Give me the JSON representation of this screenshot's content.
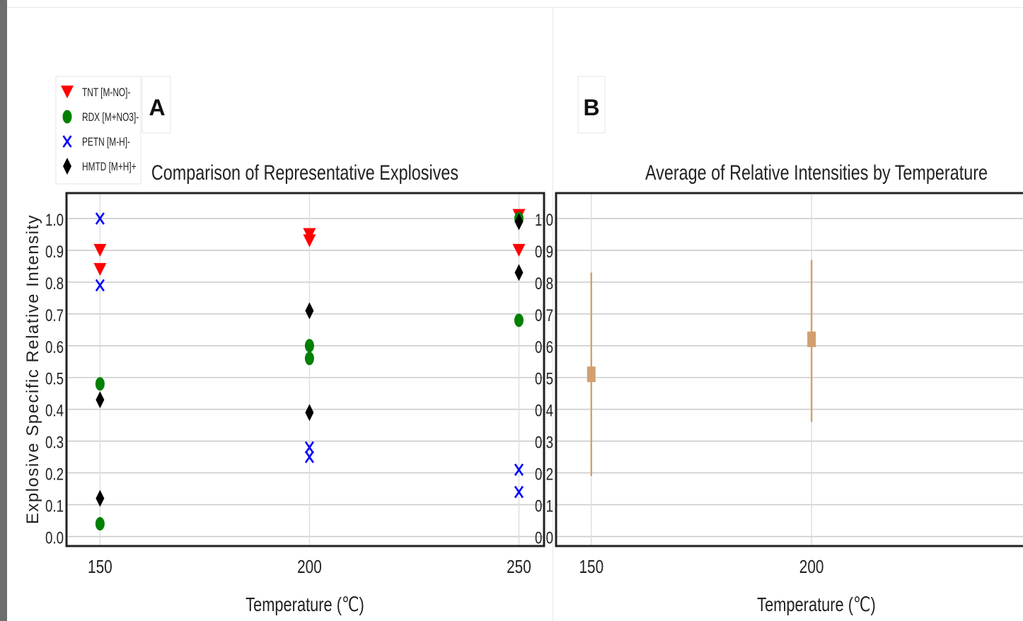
{
  "colors": {
    "tnt": "#ff0000",
    "rdx": "#008000",
    "petn": "#0000ff",
    "hmtd": "#000000",
    "avg": "#d2a06e",
    "grid": "#cccccc",
    "frame": "#222222",
    "sidebar": "#6e6e6e"
  },
  "shared_ylabel": "Explosive Specific Relative Intensity",
  "chart_data": [
    {
      "id": "A",
      "panel_label": "A",
      "type": "scatter",
      "title": "Comparison of Representative Explosives",
      "xlabel": "Temperature (℃)",
      "ylabel": "Explosive Specific Relative Intensity",
      "xlim": [
        142,
        256
      ],
      "ylim": [
        -0.03,
        1.08
      ],
      "xticks": [
        150,
        200,
        250
      ],
      "yticks": [
        0.0,
        0.1,
        0.2,
        0.3,
        0.4,
        0.5,
        0.6,
        0.7,
        0.8,
        0.9,
        1.0
      ],
      "ytick_labels": [
        "0.0",
        "0.1",
        "0.2",
        "0.3",
        "0.4",
        "0.5",
        "0.6",
        "0.7",
        "0.8",
        "0.9",
        "1.0"
      ],
      "grid": true,
      "legend_position": "top-left",
      "series": [
        {
          "name": "TNT [M-NO]-",
          "marker": "triangle-down",
          "color": "#ff0000",
          "points": [
            [
              150,
              0.9
            ],
            [
              150,
              0.84
            ],
            [
              200,
              0.95
            ],
            [
              200,
              0.93
            ],
            [
              250,
              1.01
            ],
            [
              250,
              0.9
            ]
          ]
        },
        {
          "name": "RDX [M+NO3]-",
          "marker": "circle",
          "color": "#008000",
          "points": [
            [
              150,
              0.48
            ],
            [
              150,
              0.04
            ],
            [
              200,
              0.6
            ],
            [
              200,
              0.56
            ],
            [
              250,
              1.0
            ],
            [
              250,
              0.68
            ]
          ]
        },
        {
          "name": "PETN [M-H]-",
          "marker": "x",
          "color": "#0000ff",
          "points": [
            [
              150,
              1.0
            ],
            [
              150,
              0.79
            ],
            [
              200,
              0.28
            ],
            [
              200,
              0.25
            ],
            [
              250,
              0.21
            ],
            [
              250,
              0.14
            ]
          ]
        },
        {
          "name": "HMTD [M+H]+",
          "marker": "diamond",
          "color": "#000000",
          "points": [
            [
              150,
              0.43
            ],
            [
              150,
              0.12
            ],
            [
              200,
              0.71
            ],
            [
              200,
              0.39
            ],
            [
              250,
              0.99
            ],
            [
              250,
              0.83
            ]
          ]
        }
      ]
    },
    {
      "id": "B",
      "panel_label": "B",
      "type": "scatter",
      "title": "Average of Relative Intensities by Temperature",
      "xlabel": "Temperature (℃)",
      "xlim": [
        142,
        248
      ],
      "ylim": [
        -0.03,
        1.08
      ],
      "xticks": [
        150,
        200
      ],
      "yticks": [
        0.0,
        0.1,
        0.2,
        0.3,
        0.4,
        0.5,
        0.6,
        0.7,
        0.8,
        0.9,
        1.0
      ],
      "ytick_labels": [
        "0.0",
        "0.1",
        "0.2",
        "0.3",
        "0.4",
        "0.5",
        "0.6",
        "0.7",
        "0.8",
        "0.9",
        "1.0"
      ],
      "grid": true,
      "series": [
        {
          "marker": "square",
          "color": "#d2a06e",
          "points": [
            {
              "x": 150,
              "y": 0.51,
              "err_low": 0.19,
              "err_high": 0.83
            },
            {
              "x": 200,
              "y": 0.62,
              "err_low": 0.36,
              "err_high": 0.87
            }
          ]
        }
      ]
    }
  ]
}
